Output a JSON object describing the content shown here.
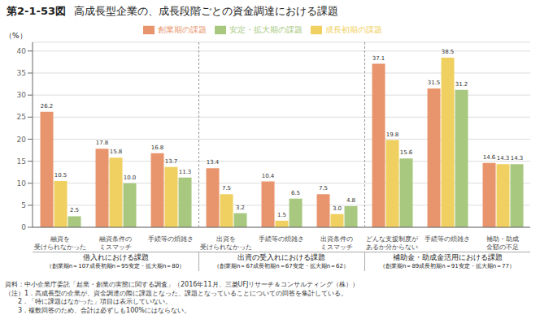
{
  "chart_data": {
    "type": "bar",
    "title": "高成長型企業の、成長段階ごとの資金調達における課題",
    "title_label": "第2-1-53図",
    "ylabel": "（%）",
    "categories": [
      "融資を\n受けられなかった",
      "融資条件の\nミスマッチ",
      "手続等の煩雑さ",
      "出資を\n受けられなかった",
      "手続等の煩雑さ",
      "出資条件の\nミスマッチ",
      "どんな支援制度が\nあるか分からない",
      "手続等の煩雑さ",
      "補助・助成\n金額の不足"
    ],
    "series": [
      {
        "name": "創業期の課題",
        "color": "#E8956D",
        "values": [
          26.2,
          17.8,
          16.8,
          13.4,
          10.4,
          7.5,
          37.1,
          31.5,
          14.6
        ],
        "value_labels": [
          "26.2",
          "17.8",
          "16.8",
          "13.4",
          "10.4",
          "7.5",
          "37.1",
          "31.5",
          "14.6"
        ]
      },
      {
        "name": "成長初期の課題",
        "color": "#F0D060",
        "values": [
          10.5,
          15.8,
          13.7,
          7.5,
          1.5,
          3.0,
          19.8,
          38.5,
          14.3
        ],
        "value_labels": [
          "10.5",
          "15.8",
          "13.7",
          "7.5",
          "1.5",
          "3.0",
          "19.8",
          "38.5",
          "14.3"
        ]
      },
      {
        "name": "安定・拡大期の課題",
        "color": "#A8C880",
        "values": [
          2.5,
          10.0,
          11.3,
          3.2,
          6.5,
          4.8,
          15.6,
          31.2,
          14.3
        ],
        "value_labels": [
          "2.5",
          "10.0",
          "11.3",
          "3.2",
          "6.5",
          "4.8",
          "15.6",
          "31.2",
          "14.3"
        ]
      }
    ],
    "groups": [
      {
        "label": "借入れにおける課題",
        "sublabel": "（創業期n＝107成長初期n＝95安定・拡大期n＝80）"
      },
      {
        "label": "出資の受入れにおける課題",
        "sublabel": "（創業期n＝67成長初期n＝67安定・拡大期n＝62）"
      },
      {
        "label": "補助金・助成金活用における課題",
        "sublabel": "（創業期n＝89成長初期n＝91安定・拡大期n＝77）"
      }
    ],
    "footnotes": [
      "資料：中小企業庁委託「起業・創業の実態に関する調査」（2016年11月、三菱UFJリサーチ＆コンサルティング（株））",
      "（注）1．高成長型の企業が、資金調達の際に課題となった、課題となっていることについての回答を集計している。",
      "　　2．「特に課題はなかった」項目は表示していない。",
      "　　3．複数回答のため、合計は必ずしも100%にはならない。"
    ],
    "ylim": [
      0,
      42
    ],
    "yticks": [
      0,
      5,
      10,
      15,
      20,
      25,
      30,
      35,
      40
    ],
    "grid": true,
    "legend": "top",
    "data_labels": true
  }
}
